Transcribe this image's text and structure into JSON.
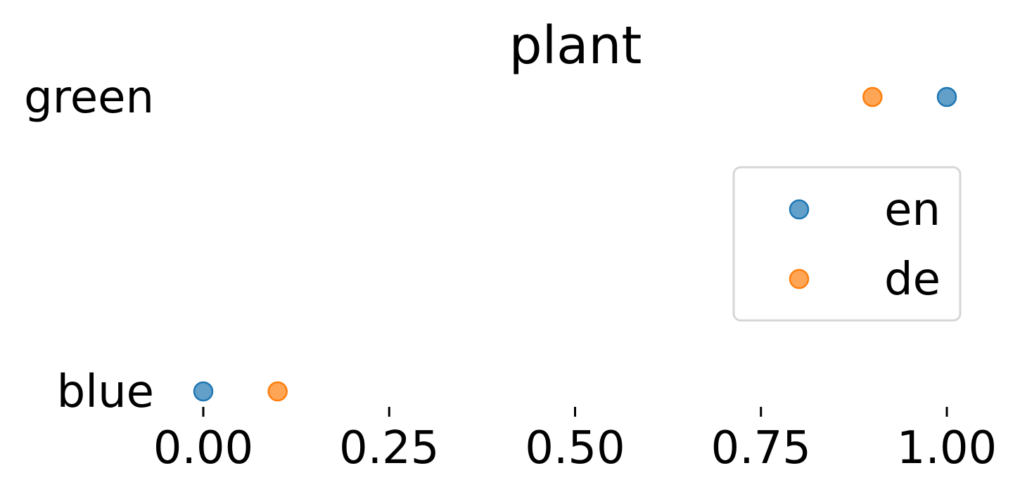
{
  "chart_data": {
    "type": "scatter",
    "title": "plant",
    "xlabel": "",
    "ylabel": "",
    "xlim": [
      0,
      1
    ],
    "categories": [
      "blue",
      "green"
    ],
    "x_ticks": [
      "0.00",
      "0.25",
      "0.50",
      "0.75",
      "1.00"
    ],
    "x_tick_values": [
      0,
      0.25,
      0.5,
      0.75,
      1
    ],
    "series": [
      {
        "name": "en",
        "color": "#1f77b4",
        "values": [
          0.0,
          1.0
        ]
      },
      {
        "name": "de",
        "color": "#ff7f0e",
        "values": [
          0.1,
          0.9
        ]
      }
    ],
    "legend_position": "right",
    "grid": false
  }
}
